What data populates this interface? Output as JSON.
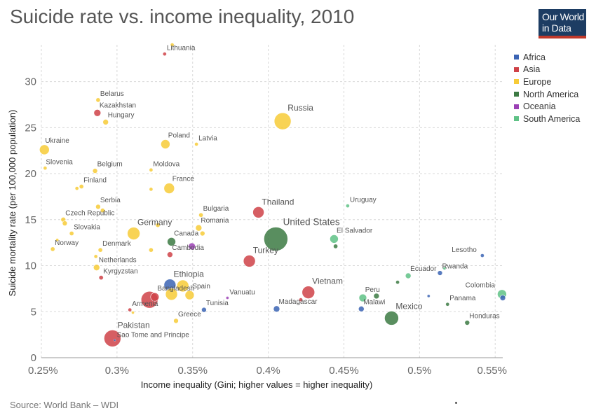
{
  "header": {
    "title": "Suicide rate vs. income inequality, 2010",
    "logo_line1": "Our World",
    "logo_line2": "in Data"
  },
  "footer": {
    "source": "Source: World Bank – WDI"
  },
  "colors": {
    "Africa": "#3b64b4",
    "Asia": "#cf4248",
    "Europe": "#f7cb37",
    "North America": "#3c7a43",
    "Oceania": "#9b41b5",
    "South America": "#5fc286"
  },
  "chart_data": {
    "type": "scatter",
    "title": "Suicide rate vs. income inequality, 2010",
    "xlabel": "Income inequality (Gini; higher values = higher inequality)",
    "ylabel": "Suicide mortality rate (per 100,000 population)",
    "xlim": [
      0.25,
      0.555
    ],
    "ylim": [
      0,
      34
    ],
    "x_ticks": [
      {
        "value": 0.25,
        "label": "0.25%"
      },
      {
        "value": 0.3,
        "label": "0.3%"
      },
      {
        "value": 0.35,
        "label": "0.35%"
      },
      {
        "value": 0.4,
        "label": "0.4%"
      },
      {
        "value": 0.45,
        "label": "0.45%"
      },
      {
        "value": 0.5,
        "label": "0.5%"
      },
      {
        "value": 0.55,
        "label": "0.55%"
      }
    ],
    "y_ticks": [
      {
        "value": 0,
        "label": "0"
      },
      {
        "value": 5,
        "label": "5"
      },
      {
        "value": 10,
        "label": "10"
      },
      {
        "value": 15,
        "label": "15"
      },
      {
        "value": 20,
        "label": "20"
      },
      {
        "value": 25,
        "label": "25"
      },
      {
        "value": 30,
        "label": "30"
      }
    ],
    "grid": true,
    "legend_position": "right",
    "legend": [
      "Africa",
      "Asia",
      "Europe",
      "North America",
      "Oceania",
      "South America"
    ],
    "points": [
      {
        "label": "Lithuania",
        "x": 0.3315,
        "y": 33.0,
        "region": "Asia",
        "size": 2.5
      },
      {
        "label": "",
        "x": 0.3365,
        "y": 34.0,
        "region": "Europe",
        "size": 2.5
      },
      {
        "label": "Belarus",
        "x": 0.2875,
        "y": 28.0,
        "region": "Europe",
        "size": 3
      },
      {
        "label": "Kazakhstan",
        "x": 0.287,
        "y": 26.6,
        "region": "Asia",
        "size": 5
      },
      {
        "label": "Hungary",
        "x": 0.2925,
        "y": 25.6,
        "region": "Europe",
        "size": 4
      },
      {
        "label": "Russia",
        "x": 0.4095,
        "y": 25.7,
        "region": "Europe",
        "size": 12
      },
      {
        "label": "Ukraine",
        "x": 0.252,
        "y": 22.6,
        "region": "Europe",
        "size": 7
      },
      {
        "label": "Poland",
        "x": 0.332,
        "y": 23.2,
        "region": "Europe",
        "size": 6.5
      },
      {
        "label": "Latvia",
        "x": 0.3525,
        "y": 23.2,
        "region": "Europe",
        "size": 2.5
      },
      {
        "label": "Slovenia",
        "x": 0.2525,
        "y": 20.6,
        "region": "Europe",
        "size": 2.5
      },
      {
        "label": "Belgium",
        "x": 0.2855,
        "y": 20.3,
        "region": "Europe",
        "size": 3.5
      },
      {
        "label": "Moldova",
        "x": 0.3225,
        "y": 20.4,
        "region": "Europe",
        "size": 2.5
      },
      {
        "label": "Finland",
        "x": 0.2765,
        "y": 18.6,
        "region": "Europe",
        "size": 3
      },
      {
        "label": "",
        "x": 0.2735,
        "y": 18.4,
        "region": "Europe",
        "size": 2.5
      },
      {
        "label": "",
        "x": 0.3225,
        "y": 18.3,
        "region": "Europe",
        "size": 2.5
      },
      {
        "label": "France",
        "x": 0.3345,
        "y": 18.4,
        "region": "Europe",
        "size": 7.5
      },
      {
        "label": "Serbia",
        "x": 0.2875,
        "y": 16.4,
        "region": "Europe",
        "size": 3.5
      },
      {
        "label": "",
        "x": 0.2905,
        "y": 16.0,
        "region": "Europe",
        "size": 3
      },
      {
        "label": "Bulgaria",
        "x": 0.3555,
        "y": 15.5,
        "region": "Europe",
        "size": 3
      },
      {
        "label": "Thailand",
        "x": 0.3935,
        "y": 15.8,
        "region": "Asia",
        "size": 8
      },
      {
        "label": "Uruguay",
        "x": 0.4525,
        "y": 16.5,
        "region": "South America",
        "size": 2.5
      },
      {
        "label": "Czech Republic",
        "x": 0.2645,
        "y": 15.0,
        "region": "Europe",
        "size": 3.5
      },
      {
        "label": "",
        "x": 0.2655,
        "y": 14.6,
        "region": "Europe",
        "size": 3.5
      },
      {
        "label": "Romania",
        "x": 0.354,
        "y": 14.1,
        "region": "Europe",
        "size": 4.5
      },
      {
        "label": "",
        "x": 0.3565,
        "y": 13.5,
        "region": "Europe",
        "size": 3.5
      },
      {
        "label": "Germany",
        "x": 0.311,
        "y": 13.5,
        "region": "Europe",
        "size": 9
      },
      {
        "label": "",
        "x": 0.327,
        "y": 14.4,
        "region": "Europe",
        "size": 3
      },
      {
        "label": "United States",
        "x": 0.405,
        "y": 12.9,
        "region": "North America",
        "size": 17
      },
      {
        "label": "Slovakia",
        "x": 0.27,
        "y": 13.5,
        "region": "Europe",
        "size": 3
      },
      {
        "label": "Canada",
        "x": 0.336,
        "y": 12.6,
        "region": "North America",
        "size": 6
      },
      {
        "label": "El Salvador",
        "x": 0.4435,
        "y": 12.9,
        "region": "South America",
        "size": 6
      },
      {
        "label": "",
        "x": 0.4445,
        "y": 12.1,
        "region": "North America",
        "size": 3
      },
      {
        "label": "Norway",
        "x": 0.2575,
        "y": 11.8,
        "region": "Europe",
        "size": 3
      },
      {
        "label": "",
        "x": 0.2605,
        "y": 12.8,
        "region": "Europe",
        "size": 2
      },
      {
        "label": "Denmark",
        "x": 0.289,
        "y": 11.7,
        "region": "Europe",
        "size": 3
      },
      {
        "label": "",
        "x": 0.286,
        "y": 11.0,
        "region": "Europe",
        "size": 2.5
      },
      {
        "label": "",
        "x": 0.3225,
        "y": 11.7,
        "region": "Europe",
        "size": 3
      },
      {
        "label": "Cambodia",
        "x": 0.335,
        "y": 11.2,
        "region": "Asia",
        "size": 4
      },
      {
        "label": "",
        "x": 0.3495,
        "y": 12.1,
        "region": "Oceania",
        "size": 5
      },
      {
        "label": "Netherlands",
        "x": 0.2865,
        "y": 9.8,
        "region": "Europe",
        "size": 4.5
      },
      {
        "label": "Turkey",
        "x": 0.3875,
        "y": 10.5,
        "region": "Asia",
        "size": 8.5
      },
      {
        "label": "Lesotho",
        "x": 0.5415,
        "y": 11.1,
        "region": "Africa",
        "size": 2.5
      },
      {
        "label": "Ecuador",
        "x": 0.4925,
        "y": 8.9,
        "region": "South America",
        "size": 4
      },
      {
        "label": "Rwanda",
        "x": 0.5135,
        "y": 9.2,
        "region": "Africa",
        "size": 3.5
      },
      {
        "label": "",
        "x": 0.5165,
        "y": 9.7,
        "region": "South America",
        "size": 2
      },
      {
        "label": "",
        "x": 0.4855,
        "y": 8.2,
        "region": "North America",
        "size": 2.5
      },
      {
        "label": "Kyrgyzstan",
        "x": 0.2895,
        "y": 8.7,
        "region": "Asia",
        "size": 3
      },
      {
        "label": "Ethiopia",
        "x": 0.335,
        "y": 7.9,
        "region": "Africa",
        "size": 8.5
      },
      {
        "label": "",
        "x": 0.3435,
        "y": 7.8,
        "region": "Europe",
        "size": 8.5
      },
      {
        "label": "Bangladesh",
        "x": 0.325,
        "y": 6.6,
        "region": "Asia",
        "size": 6
      },
      {
        "label": "",
        "x": 0.3215,
        "y": 6.3,
        "region": "Asia",
        "size": 12
      },
      {
        "label": "",
        "x": 0.336,
        "y": 6.9,
        "region": "Europe",
        "size": 8.5
      },
      {
        "label": "Spain",
        "x": 0.348,
        "y": 6.8,
        "region": "Europe",
        "size": 6.5
      },
      {
        "label": "Vanuatu",
        "x": 0.373,
        "y": 6.5,
        "region": "Oceania",
        "size": 2
      },
      {
        "label": "Vietnam",
        "x": 0.4265,
        "y": 7.1,
        "region": "Asia",
        "size": 9
      },
      {
        "label": "",
        "x": 0.4215,
        "y": 6.3,
        "region": "Asia",
        "size": 2.5
      },
      {
        "label": "Colombia",
        "x": 0.5545,
        "y": 6.9,
        "region": "South America",
        "size": 6.5
      },
      {
        "label": "",
        "x": 0.555,
        "y": 6.5,
        "region": "Africa",
        "size": 4
      },
      {
        "label": "Peru",
        "x": 0.4625,
        "y": 6.5,
        "region": "South America",
        "size": 5.5
      },
      {
        "label": "",
        "x": 0.4715,
        "y": 6.7,
        "region": "North America",
        "size": 4
      },
      {
        "label": "",
        "x": 0.506,
        "y": 6.7,
        "region": "Africa",
        "size": 2
      },
      {
        "label": "Panama",
        "x": 0.5185,
        "y": 5.8,
        "region": "North America",
        "size": 2.5
      },
      {
        "label": "Armenia",
        "x": 0.3085,
        "y": 5.2,
        "region": "Asia",
        "size": 2.5
      },
      {
        "label": "",
        "x": 0.3105,
        "y": 4.9,
        "region": "Europe",
        "size": 2
      },
      {
        "label": "Tunisia",
        "x": 0.3575,
        "y": 5.2,
        "region": "Africa",
        "size": 3.5
      },
      {
        "label": "Madagascar",
        "x": 0.4055,
        "y": 5.3,
        "region": "Africa",
        "size": 4.5
      },
      {
        "label": "Malawi",
        "x": 0.4615,
        "y": 5.3,
        "region": "Africa",
        "size": 4
      },
      {
        "label": "Mexico",
        "x": 0.4815,
        "y": 4.3,
        "region": "North America",
        "size": 10
      },
      {
        "label": "Greece",
        "x": 0.339,
        "y": 4.0,
        "region": "Europe",
        "size": 3.5
      },
      {
        "label": "Honduras",
        "x": 0.5315,
        "y": 3.8,
        "region": "North America",
        "size": 3.5
      },
      {
        "label": "Pakistan",
        "x": 0.297,
        "y": 2.1,
        "region": "Asia",
        "size": 12
      },
      {
        "label": "Sao Tome and Principe",
        "x": 0.2985,
        "y": 1.9,
        "region": "Africa",
        "size": 1.5
      }
    ]
  }
}
